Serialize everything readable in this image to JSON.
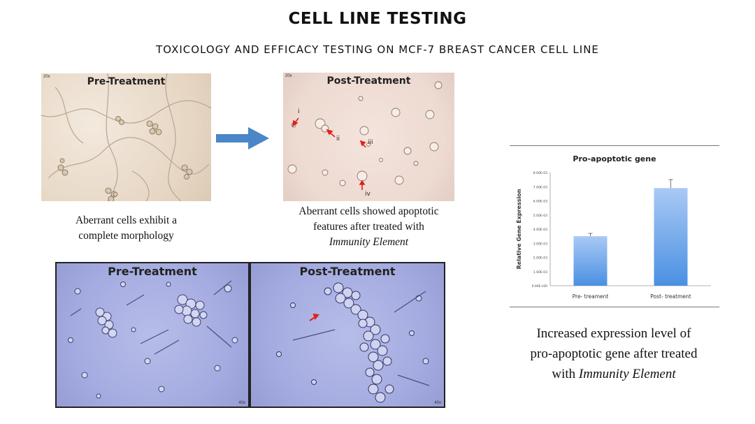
{
  "header": {
    "title": "CELL LINE TESTING",
    "subtitle": "TOXICOLOGY AND EFFICACY TESTING ON MCF-7 BREAST CANCER CELL LINE"
  },
  "top_row": {
    "pre": {
      "label": "Pre-Treatment",
      "mag": "20x"
    },
    "post": {
      "label": "Post-Treatment",
      "mag": "20x",
      "markers": [
        "i",
        "ii",
        "iii",
        "iv"
      ]
    },
    "caption_left": [
      "Aberrant cells exhibit a",
      "complete morphology"
    ],
    "caption_right": {
      "line1": "Aberrant cells showed apoptotic",
      "line2": "features after treated with",
      "italic": "Immunity Element"
    }
  },
  "bottom_row": {
    "pre": {
      "label": "Pre-Treatment",
      "mag": "40x"
    },
    "post": {
      "label": "Post-Treatment",
      "mag": "40x"
    }
  },
  "chart_data": {
    "type": "bar",
    "title": "Pro-apoptotic gene",
    "xlabel": "",
    "ylabel": "Relative Gene Expression",
    "categories": [
      "Pre- treament",
      "Post- treatment"
    ],
    "values": [
      0.0035,
      0.0069
    ],
    "errors": [
      0.0002,
      0.0006
    ],
    "ylim": [
      0,
      0.008
    ],
    "yticks": [
      "0.00E+00",
      "1.00E-03",
      "2.00E-03",
      "3.00E-03",
      "4.00E-03",
      "5.00E-03",
      "6.00E-03",
      "7.00E-03",
      "8.00E-03"
    ],
    "color": "#4a90e2"
  },
  "chart_caption": {
    "line1": "Increased expression level of",
    "line2": "pro-apoptotic gene after treated",
    "prefix": "with",
    "italic": "Immunity Element"
  },
  "colors": {
    "arrow": "#4a86c8",
    "marker": "#e0201c"
  }
}
